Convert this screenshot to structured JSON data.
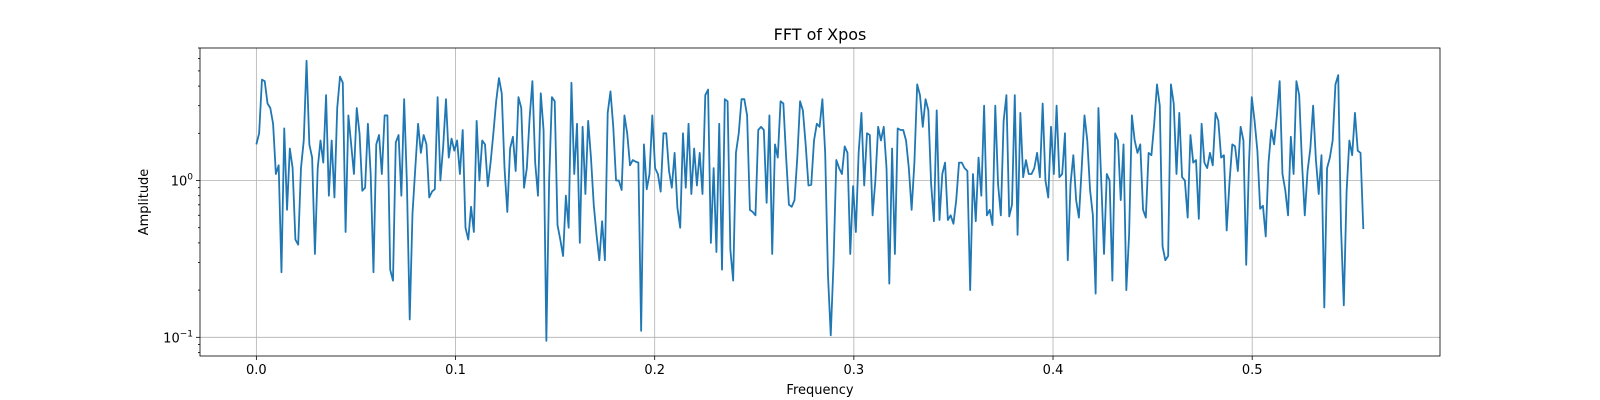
{
  "chart_data": {
    "type": "line",
    "title": "FFT of Xpos",
    "xlabel": "Frequency",
    "ylabel": "Amplitude",
    "y_scale": "log",
    "grid": true,
    "xlim": [
      -0.0283,
      0.5943
    ],
    "ylim": [
      0.076,
      7.0
    ],
    "x_ticks": [
      {
        "value": 0.0,
        "label": "0.0"
      },
      {
        "value": 0.1,
        "label": "0.1"
      },
      {
        "value": 0.2,
        "label": "0.2"
      },
      {
        "value": 0.3,
        "label": "0.3"
      },
      {
        "value": 0.4,
        "label": "0.4"
      },
      {
        "value": 0.5,
        "label": "0.5"
      }
    ],
    "y_ticks": [
      {
        "value": 0.1,
        "base": "10",
        "exp": "−1"
      },
      {
        "value": 1,
        "base": "10",
        "exp": "0"
      }
    ],
    "series": [
      {
        "color": "#1f77b4",
        "x_start": 0.0,
        "x_step": 0.0014,
        "values": [
          1.7,
          2.0,
          4.4,
          4.3,
          3.1,
          2.9,
          2.3,
          1.1,
          1.25,
          0.26,
          2.15,
          0.65,
          1.6,
          1.2,
          0.42,
          0.39,
          1.2,
          1.8,
          5.8,
          1.7,
          1.4,
          0.34,
          1.2,
          1.8,
          1.3,
          3.5,
          0.8,
          1.8,
          0.78,
          2.9,
          4.6,
          4.2,
          0.47,
          2.6,
          1.7,
          1.1,
          2.9,
          2.0,
          0.86,
          0.9,
          2.3,
          1.1,
          0.26,
          1.7,
          1.95,
          1.1,
          2.6,
          2.6,
          0.27,
          0.23,
          1.75,
          1.95,
          0.8,
          3.3,
          0.95,
          0.13,
          0.62,
          1.2,
          2.3,
          1.5,
          1.95,
          1.7,
          0.78,
          0.85,
          0.88,
          3.4,
          1.0,
          1.65,
          3.3,
          1.4,
          1.85,
          1.55,
          1.8,
          1.1,
          2.1,
          0.5,
          0.42,
          0.68,
          0.47,
          2.4,
          1.0,
          1.8,
          1.7,
          0.92,
          1.3,
          2.0,
          3.2,
          4.5,
          3.6,
          1.2,
          0.63,
          1.6,
          1.9,
          1.15,
          3.4,
          2.9,
          0.9,
          1.2,
          2.5,
          4.3,
          1.3,
          0.8,
          3.6,
          2.1,
          0.095,
          1.0,
          3.4,
          3.2,
          0.52,
          0.42,
          0.33,
          0.8,
          0.5,
          4.2,
          1.1,
          2.3,
          0.4,
          2.2,
          0.82,
          2.4,
          1.4,
          0.7,
          0.45,
          0.31,
          0.55,
          0.31,
          2.7,
          3.7,
          2.2,
          1.0,
          1.0,
          0.87,
          2.6,
          2.0,
          1.25,
          1.35,
          1.32,
          1.3,
          0.11,
          1.7,
          0.88,
          1.1,
          2.6,
          1.2,
          1.1,
          0.85,
          2.0,
          2.0,
          1.15,
          0.9,
          1.5,
          0.67,
          0.5,
          2.0,
          0.9,
          2.3,
          0.82,
          1.6,
          0.93,
          1.5,
          0.82,
          3.5,
          3.8,
          0.4,
          1.2,
          0.35,
          2.3,
          0.27,
          3.3,
          3.2,
          0.36,
          0.23,
          1.5,
          2.0,
          3.3,
          3.3,
          2.6,
          0.65,
          0.63,
          0.6,
          2.1,
          2.2,
          2.1,
          0.72,
          2.6,
          0.34,
          1.7,
          1.4,
          3.2,
          3.1,
          1.4,
          0.7,
          0.68,
          0.75,
          1.4,
          3.2,
          2.8,
          1.7,
          0.93,
          0.94,
          1.8,
          2.3,
          2.2,
          3.3,
          1.5,
          0.25,
          0.103,
          0.3,
          1.35,
          1.2,
          1.1,
          1.65,
          1.5,
          0.34,
          0.92,
          0.47,
          1.5,
          2.7,
          0.93,
          2.0,
          1.95,
          0.6,
          1.0,
          2.2,
          1.8,
          2.2,
          1.2,
          0.22,
          1.6,
          0.34,
          2.15,
          2.1,
          2.1,
          1.8,
          1.2,
          0.65,
          1.3,
          4.1,
          3.5,
          2.2,
          3.3,
          2.8,
          0.95,
          0.55,
          2.8,
          0.56,
          1.1,
          1.3,
          0.56,
          0.6,
          0.53,
          0.75,
          1.3,
          1.3,
          1.2,
          1.15,
          0.2,
          1.1,
          0.55,
          1.4,
          0.8,
          3.0,
          0.6,
          0.65,
          0.52,
          3.0,
          0.95,
          0.6,
          2.4,
          3.5,
          0.59,
          0.7,
          3.5,
          0.45,
          2.7,
          1.05,
          1.35,
          1.1,
          1.1,
          1.2,
          1.5,
          1.05,
          3.1,
          1.0,
          0.78,
          2.2,
          1.1,
          3.0,
          1.05,
          1.1,
          2.0,
          0.31,
          0.95,
          1.45,
          0.75,
          0.58,
          1.2,
          2.6,
          1.8,
          0.87,
          0.6,
          0.19,
          2.9,
          1.0,
          0.34,
          1.1,
          1.0,
          0.23,
          2.0,
          1.8,
          0.75,
          1.7,
          0.2,
          0.45,
          2.6,
          1.8,
          1.5,
          1.7,
          0.65,
          0.58,
          1.5,
          1.45,
          2.3,
          4.1,
          3.0,
          0.38,
          0.31,
          0.33,
          4.1,
          3.1,
          1.1,
          2.7,
          1.05,
          1.0,
          0.58,
          1.95,
          1.3,
          1.35,
          0.57,
          2.3,
          1.3,
          1.2,
          1.5,
          1.25,
          2.7,
          2.4,
          1.4,
          1.45,
          0.48,
          0.97,
          1.7,
          1.65,
          1.15,
          2.2,
          1.8,
          0.29,
          1.3,
          3.4,
          2.4,
          1.55,
          0.66,
          0.69,
          0.44,
          1.3,
          2.1,
          1.7,
          2.6,
          4.3,
          1.1,
          0.87,
          0.6,
          1.9,
          1.1,
          4.3,
          3.5,
          1.3,
          0.6,
          1.15,
          1.6,
          3.0,
          1.35,
          0.82,
          1.45,
          0.155,
          1.2,
          1.4,
          1.8,
          4.1,
          4.7,
          0.5,
          0.16,
          0.85,
          1.8,
          1.45,
          2.7,
          1.55,
          1.5,
          0.49
        ]
      }
    ]
  }
}
